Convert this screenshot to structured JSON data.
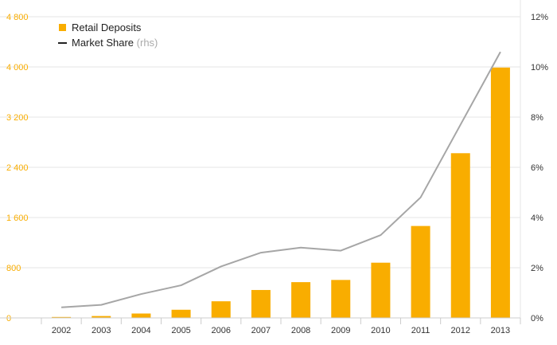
{
  "chart_data": {
    "type": "bar",
    "categories": [
      "2002",
      "2003",
      "2004",
      "2005",
      "2006",
      "2007",
      "2008",
      "2009",
      "2010",
      "2011",
      "2012",
      "2013"
    ],
    "series": [
      {
        "name": "Retail Deposits",
        "type": "bar",
        "axis": "left",
        "values": [
          15,
          30,
          70,
          130,
          265,
          445,
          570,
          605,
          880,
          1465,
          2625,
          3990
        ]
      },
      {
        "name": "Market Share",
        "name_suffix": "(rhs)",
        "type": "line",
        "axis": "right",
        "values": [
          0.42,
          0.52,
          0.95,
          1.3,
          2.05,
          2.6,
          2.8,
          2.68,
          3.3,
          4.8,
          7.7,
          10.6
        ]
      }
    ],
    "y_left": {
      "ticks": [
        0,
        800,
        1600,
        2400,
        3200,
        4000,
        4800
      ],
      "tick_labels": [
        "0",
        "800",
        "1 600",
        "2 400",
        "3 200",
        "4 000",
        "4 800"
      ],
      "ylim": [
        0,
        4800
      ]
    },
    "y_right": {
      "ticks": [
        0,
        2,
        4,
        6,
        8,
        10,
        12
      ],
      "tick_labels": [
        "0%",
        "2%",
        "4%",
        "6%",
        "8%",
        "10%",
        "12%"
      ],
      "ylim": [
        0,
        12
      ]
    },
    "title": "",
    "xlabel": "",
    "ylabel": "",
    "grid": true,
    "legend_position": "top-left",
    "colors": {
      "bar": "#f9ad00",
      "line": "#a6a6a6",
      "left_axis_labels": "#f9ad00",
      "right_axis_labels": "#333333",
      "grid": "#e6e6e6",
      "legend_line": "#222222"
    }
  }
}
